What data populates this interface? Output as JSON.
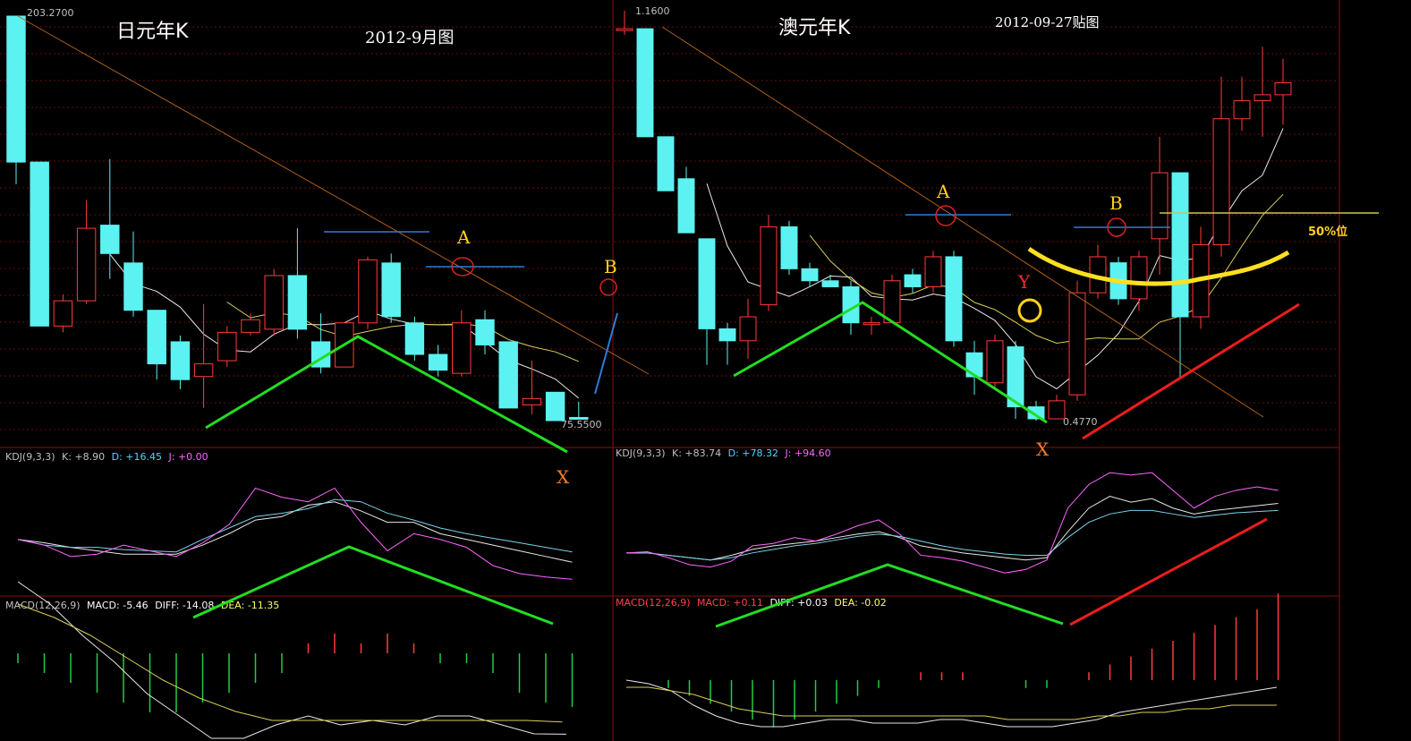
{
  "left": {
    "title": "日元年K",
    "subtitle": "2012-9月图",
    "high_label": "203.2700",
    "low_label": "75.5500",
    "kdj_label": "KDJ(9,3,3)",
    "kdj_k": "K: +8.90",
    "kdj_d": "D: +16.45",
    "kdj_j": "J: +0.00",
    "macd_label": "MACD(12,26,9)",
    "macd_val": "MACD: -5.46",
    "macd_diff": "DIFF: -14.08",
    "macd_dea": "DEA: -11.35",
    "mark_a": "A",
    "mark_b": "B",
    "mark_x": "X",
    "chart_data": {
      "type": "candlestick",
      "candles": [
        {
          "o": 203.3,
          "c": 157.0,
          "h": 203.3,
          "l": 150.0
        },
        {
          "o": 157.0,
          "c": 105.0,
          "h": 157.0,
          "l": 105.0
        },
        {
          "o": 105.0,
          "c": 113.0,
          "h": 115.0,
          "l": 103.0
        },
        {
          "o": 113.0,
          "c": 136.0,
          "h": 145.0,
          "l": 112.0
        },
        {
          "o": 137.0,
          "c": 128.0,
          "h": 158.0,
          "l": 120.0
        },
        {
          "o": 125.0,
          "c": 110.0,
          "h": 135.0,
          "l": 108.0
        },
        {
          "o": 110.0,
          "c": 93.0,
          "h": 110.0,
          "l": 88.0
        },
        {
          "o": 100.0,
          "c": 88.0,
          "h": 102.0,
          "l": 85.0
        },
        {
          "o": 89.0,
          "c": 93.0,
          "h": 112.0,
          "l": 79.0
        },
        {
          "o": 94.0,
          "c": 103.0,
          "h": 105.0,
          "l": 92.0
        },
        {
          "o": 103.0,
          "c": 107.0,
          "h": 109.0,
          "l": 102.0
        },
        {
          "o": 104.0,
          "c": 121.0,
          "h": 123.0,
          "l": 102.0
        },
        {
          "o": 121.0,
          "c": 104.0,
          "h": 136.0,
          "l": 101.0
        },
        {
          "o": 100.0,
          "c": 92.0,
          "h": 109.0,
          "l": 90.0
        },
        {
          "o": 92.0,
          "c": 106.0,
          "h": 106.0,
          "l": 92.0
        },
        {
          "o": 106.0,
          "c": 126.0,
          "h": 127.0,
          "l": 104.0
        },
        {
          "o": 125.0,
          "c": 108.0,
          "h": 128.0,
          "l": 106.0
        },
        {
          "o": 106.0,
          "c": 96.0,
          "h": 108.0,
          "l": 94.0
        },
        {
          "o": 96.0,
          "c": 91.0,
          "h": 99.0,
          "l": 89.0
        },
        {
          "o": 90.0,
          "c": 106.0,
          "h": 110.0,
          "l": 89.0
        },
        {
          "o": 107.0,
          "c": 99.0,
          "h": 110.0,
          "l": 96.0
        },
        {
          "o": 100.0,
          "c": 79.0,
          "h": 100.0,
          "l": 79.0
        },
        {
          "o": 80.0,
          "c": 82.0,
          "h": 94.0,
          "l": 77.0
        },
        {
          "o": 84.0,
          "c": 75.0,
          "h": 84.0,
          "l": 75.0
        },
        {
          "o": 76.0,
          "c": 75.6,
          "h": 81.0,
          "l": 75.55
        }
      ],
      "kdj": {
        "k": [
          95,
          92,
          88,
          85,
          82,
          82,
          82,
          90,
          100,
          112,
          115,
          125,
          128,
          120,
          110,
          110,
          100,
          95,
          90,
          85,
          80,
          75
        ],
        "d": [
          95,
          90,
          88,
          88,
          86,
          85,
          84,
          95,
          105,
          115,
          118,
          122,
          130,
          128,
          118,
          112,
          105,
          100,
          96,
          92,
          88,
          84
        ],
        "j": [
          95,
          90,
          80,
          82,
          90,
          85,
          80,
          92,
          108,
          140,
          132,
          128,
          140,
          110,
          85,
          100,
          95,
          88,
          72,
          65,
          62,
          60
        ]
      },
      "macd": {
        "hist": [
          -1,
          -2,
          -3,
          -4,
          -5,
          -6,
          -6,
          -5,
          -4,
          -3,
          -2,
          1,
          2,
          1,
          2,
          1,
          -1,
          -1,
          -2,
          -4,
          -5,
          -5.46
        ],
        "diff": [
          20,
          15,
          8,
          2,
          -5,
          -10,
          -15,
          -15,
          -12,
          -10,
          -12,
          -11,
          -12,
          -10,
          -10,
          -12,
          -14,
          -14.08
        ],
        "dea": [
          15,
          12,
          8,
          3,
          -2,
          -6,
          -9,
          -11,
          -11,
          -11,
          -11,
          -11,
          -11,
          -11,
          -11,
          -11.35
        ]
      }
    }
  },
  "right": {
    "title": "澳元年K",
    "subtitle": "2012-09-27贴图",
    "high_label": "1.1600",
    "low_label": "0.4770",
    "level_label": "50%位",
    "kdj_label": "KDJ(9,3,3)",
    "kdj_k": "K: +83.74",
    "kdj_d": "D: +78.32",
    "kdj_j": "J: +94.60",
    "macd_label": "MACD(12,26,9)",
    "macd_val": "MACD: +0.11",
    "macd_diff": "DIFF: +0.03",
    "macd_dea": "DEA: -0.02",
    "mark_a": "A",
    "mark_b": "B",
    "mark_x": "X",
    "mark_y": "Y",
    "chart_data": {
      "type": "candlestick",
      "candles": [
        {
          "o": 1.13,
          "c": 1.13,
          "h": 1.16,
          "l": 1.12
        },
        {
          "o": 1.13,
          "c": 0.95,
          "h": 1.13,
          "l": 0.95
        },
        {
          "o": 0.95,
          "c": 0.86,
          "h": 0.95,
          "l": 0.86
        },
        {
          "o": 0.88,
          "c": 0.79,
          "h": 0.9,
          "l": 0.79
        },
        {
          "o": 0.78,
          "c": 0.63,
          "h": 0.78,
          "l": 0.57
        },
        {
          "o": 0.63,
          "c": 0.61,
          "h": 0.64,
          "l": 0.57
        },
        {
          "o": 0.61,
          "c": 0.65,
          "h": 0.68,
          "l": 0.58
        },
        {
          "o": 0.67,
          "c": 0.8,
          "h": 0.82,
          "l": 0.66
        },
        {
          "o": 0.8,
          "c": 0.73,
          "h": 0.81,
          "l": 0.72
        },
        {
          "o": 0.73,
          "c": 0.71,
          "h": 0.74,
          "l": 0.7
        },
        {
          "o": 0.71,
          "c": 0.7,
          "h": 0.72,
          "l": 0.7
        },
        {
          "o": 0.7,
          "c": 0.64,
          "h": 0.71,
          "l": 0.62
        },
        {
          "o": 0.64,
          "c": 0.64,
          "h": 0.65,
          "l": 0.62
        },
        {
          "o": 0.64,
          "c": 0.71,
          "h": 0.72,
          "l": 0.64
        },
        {
          "o": 0.72,
          "c": 0.7,
          "h": 0.73,
          "l": 0.69
        },
        {
          "o": 0.7,
          "c": 0.75,
          "h": 0.76,
          "l": 0.69
        },
        {
          "o": 0.75,
          "c": 0.61,
          "h": 0.76,
          "l": 0.6
        },
        {
          "o": 0.59,
          "c": 0.55,
          "h": 0.61,
          "l": 0.52
        },
        {
          "o": 0.54,
          "c": 0.61,
          "h": 0.62,
          "l": 0.53
        },
        {
          "o": 0.6,
          "c": 0.5,
          "h": 0.61,
          "l": 0.48
        },
        {
          "o": 0.5,
          "c": 0.48,
          "h": 0.51,
          "l": 0.477
        },
        {
          "o": 0.48,
          "c": 0.51,
          "h": 0.52,
          "l": 0.48
        },
        {
          "o": 0.52,
          "c": 0.69,
          "h": 0.71,
          "l": 0.51
        },
        {
          "o": 0.69,
          "c": 0.75,
          "h": 0.77,
          "l": 0.68
        },
        {
          "o": 0.74,
          "c": 0.68,
          "h": 0.75,
          "l": 0.67
        },
        {
          "o": 0.68,
          "c": 0.75,
          "h": 0.76,
          "l": 0.66
        },
        {
          "o": 0.78,
          "c": 0.89,
          "h": 0.95,
          "l": 0.72
        },
        {
          "o": 0.89,
          "c": 0.65,
          "h": 0.89,
          "l": 0.55
        },
        {
          "o": 0.65,
          "c": 0.77,
          "h": 0.8,
          "l": 0.63
        },
        {
          "o": 0.77,
          "c": 0.98,
          "h": 1.05,
          "l": 0.75
        },
        {
          "o": 0.98,
          "c": 1.01,
          "h": 1.05,
          "l": 0.96
        },
        {
          "o": 1.01,
          "c": 1.02,
          "h": 1.1,
          "l": 0.95
        },
        {
          "o": 1.02,
          "c": 1.04,
          "h": 1.08,
          "l": 0.97
        }
      ],
      "kdj": {
        "k": [
          82,
          82,
          80,
          78,
          76,
          80,
          85,
          88,
          90,
          92,
          95,
          98,
          100,
          95,
          88,
          85,
          82,
          80,
          78,
          76,
          78,
          100,
          120,
          130,
          125,
          128,
          120,
          115,
          118,
          120,
          122,
          124
        ],
        "d": [
          82,
          82,
          80,
          78,
          76,
          78,
          82,
          85,
          88,
          90,
          93,
          96,
          98,
          96,
          92,
          88,
          85,
          83,
          81,
          80,
          80,
          95,
          108,
          115,
          118,
          118,
          115,
          112,
          114,
          116,
          117,
          118
        ],
        "j": [
          82,
          83,
          78,
          72,
          70,
          75,
          88,
          90,
          95,
          92,
          98,
          105,
          110,
          98,
          80,
          78,
          75,
          70,
          65,
          68,
          76,
          120,
          140,
          150,
          148,
          150,
          135,
          120,
          130,
          135,
          138,
          135
        ]
      },
      "macd": {
        "hist": [
          0,
          0,
          -0.01,
          -0.02,
          -0.03,
          -0.04,
          -0.05,
          -0.06,
          -0.05,
          -0.04,
          -0.03,
          -0.02,
          -0.01,
          0,
          0.01,
          0.01,
          0.01,
          0,
          0,
          -0.01,
          -0.01,
          0,
          0.01,
          0.02,
          0.03,
          0.04,
          0.05,
          0.06,
          0.07,
          0.08,
          0.09,
          0.11
        ],
        "diff": [
          0.05,
          0.04,
          0.02,
          -0.02,
          -0.05,
          -0.07,
          -0.08,
          -0.08,
          -0.07,
          -0.06,
          -0.06,
          -0.07,
          -0.07,
          -0.07,
          -0.06,
          -0.06,
          -0.07,
          -0.08,
          -0.08,
          -0.08,
          -0.07,
          -0.06,
          -0.04,
          -0.03,
          -0.02,
          -0.01,
          0,
          0.01,
          0.02,
          0.03
        ],
        "dea": [
          0.03,
          0.03,
          0.02,
          0.01,
          -0.01,
          -0.03,
          -0.04,
          -0.05,
          -0.05,
          -0.05,
          -0.05,
          -0.05,
          -0.05,
          -0.05,
          -0.05,
          -0.05,
          -0.05,
          -0.06,
          -0.06,
          -0.06,
          -0.06,
          -0.05,
          -0.05,
          -0.04,
          -0.04,
          -0.03,
          -0.03,
          -0.02,
          -0.02,
          -0.02
        ]
      }
    }
  }
}
